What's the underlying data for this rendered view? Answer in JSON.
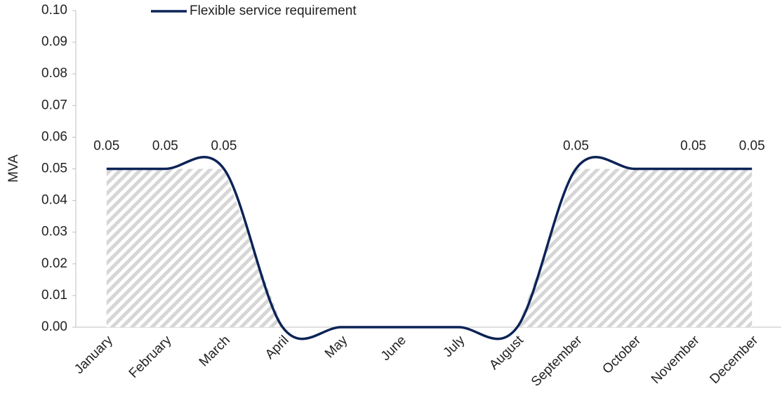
{
  "chart_data": {
    "type": "line",
    "y_label": "MVA",
    "categories": [
      "January",
      "February",
      "March",
      "April",
      "May",
      "June",
      "July",
      "August",
      "September",
      "October",
      "November",
      "December"
    ],
    "series": [
      {
        "name": "Flexible service requirement",
        "color": "#0c2356",
        "values": [
          0.05,
          0.05,
          0.05,
          0,
          0,
          0,
          0,
          0,
          0.05,
          0.05,
          0.05,
          0.05
        ],
        "value_labels": [
          "0.05",
          "0.05",
          "0.05",
          null,
          null,
          null,
          null,
          null,
          "0.05",
          null,
          "0.05",
          "0.05"
        ]
      }
    ],
    "ylim": [
      0,
      0.1
    ],
    "yticks": [
      {
        "value": 0,
        "label": "0.00"
      },
      {
        "value": 0.01,
        "label": "0.01"
      },
      {
        "value": 0.02,
        "label": "0.02"
      },
      {
        "value": 0.03,
        "label": "0.03"
      },
      {
        "value": 0.04,
        "label": "0.04"
      },
      {
        "value": 0.05,
        "label": "0.05"
      },
      {
        "value": 0.06,
        "label": "0.06"
      },
      {
        "value": 0.07,
        "label": "0.07"
      },
      {
        "value": 0.08,
        "label": "0.08"
      },
      {
        "value": 0.09,
        "label": "0.09"
      },
      {
        "value": 0.1,
        "label": "0.10"
      }
    ],
    "smooth": true,
    "legend": "top"
  }
}
